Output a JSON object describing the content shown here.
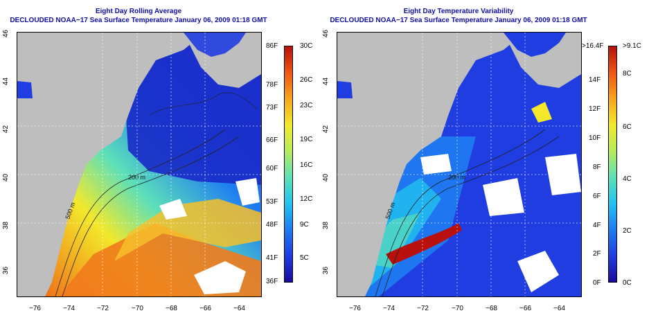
{
  "left_panel": {
    "title": "Eight Day Rolling Average",
    "subtitle": "DECLOUDED NOAA−17 Sea Surface Temperature January 06, 2009 01:18 GMT",
    "contour_labels": [
      "200 m",
      "500 m"
    ],
    "colorbar": {
      "colors": [
        "#1a0a9c",
        "#1f3de0",
        "#1e7cf2",
        "#22c3f0",
        "#5de0b8",
        "#b6ec5a",
        "#f3e92a",
        "#f7a51b",
        "#ee5613",
        "#b8100c"
      ],
      "f_labels": [
        "86F",
        "78F",
        "73F",
        "66F",
        "60F",
        "53F",
        "48F",
        "41F",
        "36F"
      ],
      "c_labels": [
        "30C",
        "26C",
        "23C",
        "19C",
        "16C",
        "12C",
        "9C",
        "5C"
      ]
    }
  },
  "right_panel": {
    "title": "Eight Day Temperature Variability",
    "subtitle": "DECLOUDED NOAA−17 Sea Surface Temperature January 06, 2009 01:18 GMT",
    "contour_labels": [
      "200 m",
      "500 m"
    ],
    "colorbar": {
      "colors": [
        "#1a0a9c",
        "#1f3de0",
        "#1e7cf2",
        "#22c3f0",
        "#5de0b8",
        "#b6ec5a",
        "#f3e92a",
        "#f7a51b",
        "#ee5613",
        "#b8100c"
      ],
      "f_labels": [
        ">16.4F",
        "14F",
        "12F",
        "10F",
        "8F",
        "6F",
        "4F",
        "2F",
        "0F"
      ],
      "c_labels": [
        ">9.1C",
        "8C",
        "6C",
        "4C",
        "2C",
        "0C"
      ]
    }
  },
  "axes": {
    "x_ticks": [
      "−76",
      "−74",
      "−72",
      "−70",
      "−68",
      "−66",
      "−64"
    ],
    "y_ticks": [
      "46",
      "44",
      "42",
      "40",
      "38",
      "36"
    ]
  }
}
